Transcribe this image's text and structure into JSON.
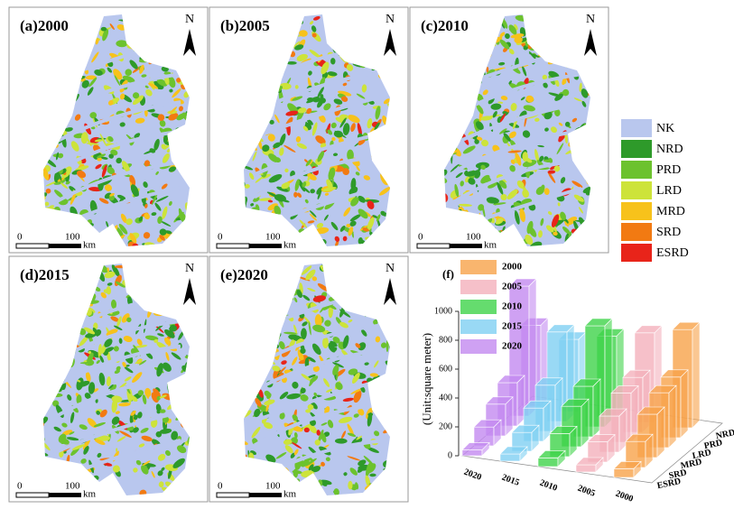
{
  "maps": [
    {
      "label": "(a)2000"
    },
    {
      "label": "(b)2005"
    },
    {
      "label": "(c)2010"
    },
    {
      "label": "(d)2015"
    },
    {
      "label": "(e)2020"
    }
  ],
  "north": "N",
  "scale": {
    "start": "0",
    "end": "100",
    "unit": "km"
  },
  "legend": [
    {
      "name": "NK",
      "color": "#b9c7ee"
    },
    {
      "name": "NRD",
      "color": "#2e9a2a"
    },
    {
      "name": "PRD",
      "color": "#6cc22e"
    },
    {
      "name": "LRD",
      "color": "#cde33a"
    },
    {
      "name": "MRD",
      "color": "#f7c21b"
    },
    {
      "name": "SRD",
      "color": "#f27a12"
    },
    {
      "name": "ESRD",
      "color": "#e8241a"
    }
  ],
  "chart_data": {
    "type": "bar3d",
    "label": "(f)",
    "y_label": "(Unit:square meter)",
    "categories": [
      "NRD",
      "PRD",
      "LRD",
      "MRD",
      "SRD",
      "ESRD"
    ],
    "series": [
      {
        "name": "2000",
        "color": "#f7a24a",
        "values": [
          680,
          420,
          380,
          300,
          180,
          60
        ]
      },
      {
        "name": "2005",
        "color": "#f4b0bc",
        "values": [
          620,
          380,
          340,
          250,
          140,
          50
        ]
      },
      {
        "name": "2010",
        "color": "#3fd34a",
        "values": [
          560,
          700,
          350,
          280,
          160,
          60
        ]
      },
      {
        "name": "2015",
        "color": "#7fd0f2",
        "values": [
          500,
          620,
          320,
          230,
          130,
          50
        ]
      },
      {
        "name": "2020",
        "color": "#c38af0",
        "values": [
          560,
          900,
          300,
          220,
          130,
          40
        ]
      }
    ],
    "ylim": [
      0,
      1000
    ],
    "yticks": [
      0,
      200,
      400,
      600,
      800,
      1000
    ]
  }
}
